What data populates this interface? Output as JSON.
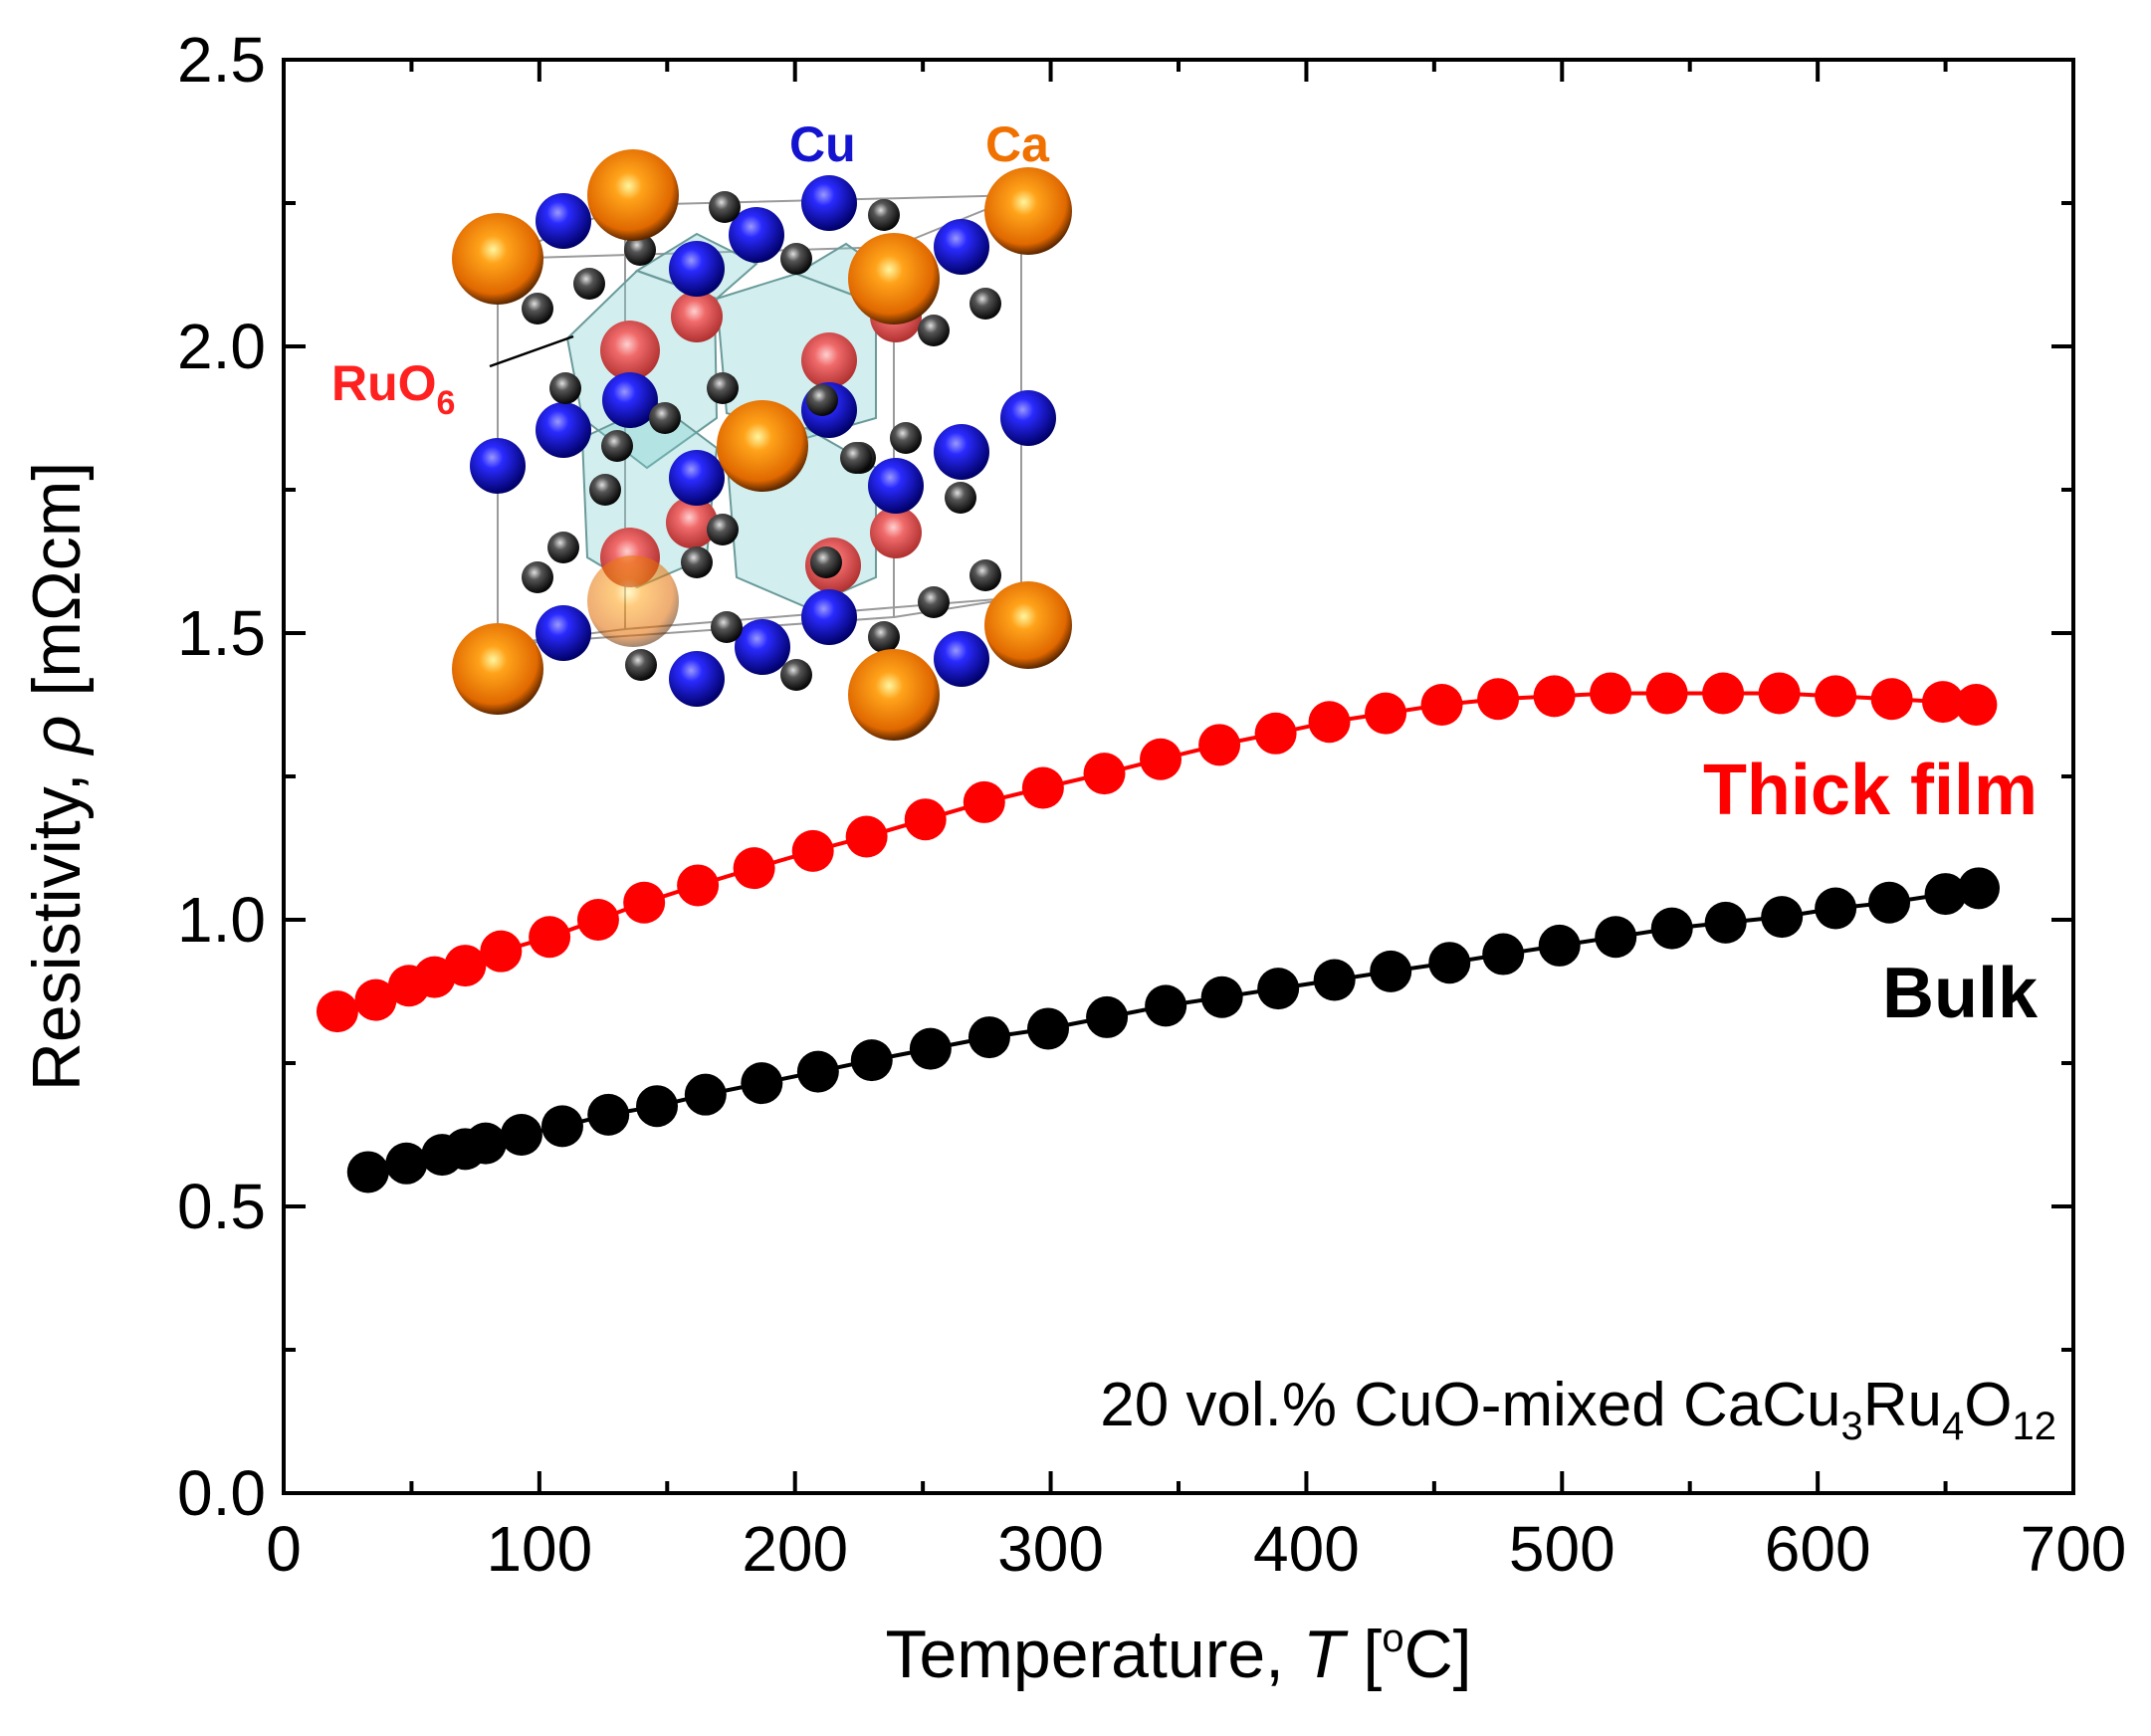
{
  "chart_data": {
    "type": "scatter",
    "title": "",
    "xlabel_prefix": "Temperature, ",
    "xlabel_symbol": "T",
    "xlabel_unit_open": " [",
    "xlabel_unit_sup": "o",
    "xlabel_unit_close": "C]",
    "ylabel_prefix": "Resistivity, ",
    "ylabel_symbol": "ρ",
    "ylabel_unit": " [mΩcm]",
    "xlim": [
      0,
      700
    ],
    "ylim": [
      0.0,
      2.5
    ],
    "x_ticks": [
      0,
      100,
      200,
      300,
      400,
      500,
      600,
      700
    ],
    "x_tick_labels": [
      "0",
      "100",
      "200",
      "300",
      "400",
      "500",
      "600",
      "700"
    ],
    "y_ticks": [
      0.0,
      0.5,
      1.0,
      1.5,
      2.0,
      2.5
    ],
    "y_tick_labels": [
      "0.0",
      "0.5",
      "1.0",
      "1.5",
      "2.0",
      "2.5"
    ],
    "grid": false,
    "series": [
      {
        "name": "Thick film",
        "color": "#ff0000",
        "x": [
          21,
          36,
          49,
          59,
          71,
          85,
          104,
          123,
          141,
          162,
          184,
          207,
          228,
          251,
          274,
          297,
          321,
          343,
          366,
          388,
          409,
          431,
          453,
          475,
          497,
          519,
          541,
          563,
          585,
          607,
          629,
          649,
          662
        ],
        "y": [
          0.84,
          0.86,
          0.885,
          0.9,
          0.92,
          0.945,
          0.97,
          1.0,
          1.03,
          1.06,
          1.09,
          1.12,
          1.145,
          1.175,
          1.205,
          1.23,
          1.255,
          1.28,
          1.305,
          1.325,
          1.345,
          1.36,
          1.375,
          1.385,
          1.39,
          1.395,
          1.395,
          1.395,
          1.395,
          1.39,
          1.385,
          1.38,
          1.375
        ]
      },
      {
        "name": "Bulk",
        "color": "#000000",
        "x": [
          33,
          48,
          62,
          71,
          79,
          93,
          109,
          127,
          146,
          165,
          187,
          209,
          230,
          253,
          276,
          299,
          322,
          345,
          367,
          389,
          411,
          433,
          456,
          477,
          499,
          521,
          543,
          564,
          586,
          607,
          628,
          650,
          663
        ],
        "y": [
          0.56,
          0.575,
          0.59,
          0.6,
          0.61,
          0.625,
          0.64,
          0.66,
          0.675,
          0.695,
          0.715,
          0.735,
          0.755,
          0.775,
          0.795,
          0.81,
          0.83,
          0.85,
          0.865,
          0.88,
          0.895,
          0.91,
          0.925,
          0.94,
          0.955,
          0.97,
          0.985,
          0.995,
          1.005,
          1.02,
          1.03,
          1.045,
          1.055
        ]
      }
    ],
    "series_labels": {
      "thick_film": "Thick film",
      "bulk": "Bulk"
    },
    "annotation": {
      "prefix": "20 vol.% CuO-mixed CaCu",
      "sub1": "3",
      "mid1": "Ru",
      "sub2": "4",
      "mid2": "O",
      "sub3": "12"
    },
    "inset": {
      "label_cu": "Cu",
      "label_ca": "Ca",
      "label_ruo": "RuO",
      "label_ruo_sub": "6",
      "color_cu": "#1414d0",
      "color_ca": "#f07000",
      "color_ru": "#ff2020"
    }
  }
}
